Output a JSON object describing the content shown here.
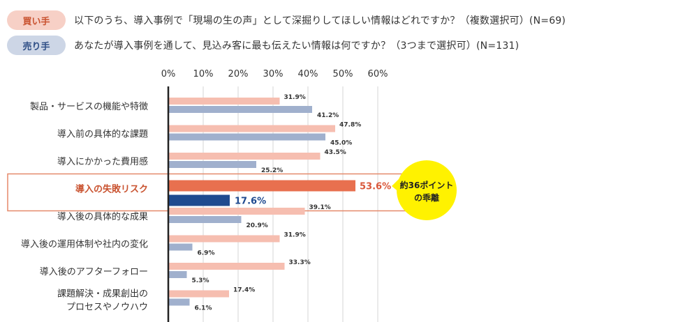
{
  "legend": {
    "buyer": {
      "label": "買い手",
      "question": "以下のうち、導入事例で「現場の生の声」として深掘りしてほしい情報はどれですか？（複数選択可）(N=69)"
    },
    "seller": {
      "label": "売り手",
      "question": "あなたが導入事例を通して、見込み客に最も伝えたい情報は何ですか？（3つまで選択可）(N=131)"
    }
  },
  "colors": {
    "buyer": "#f6beb0",
    "seller": "#a0b0cd",
    "buyer_highlight": "#e8704f",
    "seller_highlight": "#1f4a8f",
    "highlight_border": "#e5896a",
    "callout": "#fff200"
  },
  "chart_data": {
    "type": "bar",
    "orientation": "horizontal",
    "categories": [
      "製品・サービスの機能や特徴",
      "導入前の具体的な課題",
      "導入にかかった費用感",
      "導入の失敗リスク",
      "導入後の具体的な成果",
      "導入後の運用体制や社内の変化",
      "導入後のアフターフォロー",
      "課題解決・成果創出の\nプロセスやノウハウ"
    ],
    "series": [
      {
        "name": "買い手",
        "values": [
          31.9,
          47.8,
          43.5,
          53.6,
          39.1,
          31.9,
          33.3,
          17.4
        ]
      },
      {
        "name": "売り手",
        "values": [
          41.2,
          45.0,
          25.2,
          17.6,
          20.9,
          6.9,
          5.3,
          6.1
        ]
      }
    ],
    "value_suffix": "%",
    "xlim": [
      0,
      60
    ],
    "ticks": [
      "0%",
      "10%",
      "20%",
      "30%",
      "40%",
      "50%",
      "60%"
    ],
    "highlight_category": "導入の失敗リスク",
    "annotation": {
      "line1": "約36ポイント",
      "line2": "の乖離"
    }
  }
}
